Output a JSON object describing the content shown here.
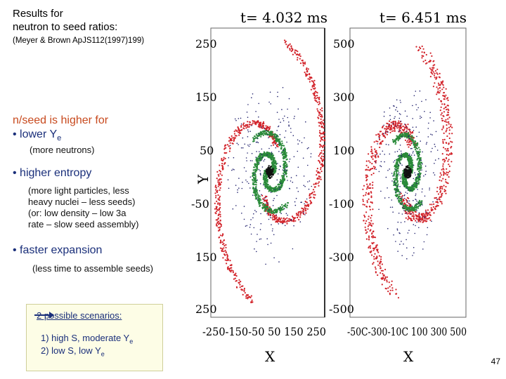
{
  "title_line1": "Results for",
  "title_line2": "neutron to seed ratios:",
  "reference": "(Meyer & Brown ApJS112(1997)199)",
  "heading": "n/seed is higher for",
  "bullet1": "• lower Y",
  "bullet1_sub": "e",
  "bullet1_note": "(more neutrons)",
  "bullet2": "• higher entropy",
  "bullet2_note_l1": "(more light particles, less",
  "bullet2_note_l2": "heavy nuclei – less seeds)",
  "bullet2_note_l3": "(or: low density – low 3a",
  "bullet2_note_l4": "rate – slow seed assembly)",
  "bullet3": "• faster expansion",
  "bullet3_note": "(less time to assemble seeds)",
  "scenarios_title": "2 possible scenarios:",
  "scenario1": "1) high S, moderate Y",
  "scenario1_sub": "e",
  "scenario2": "2) low S, low Y",
  "scenario2_sub": "e",
  "page_number": "47",
  "panels": [
    {
      "time_label": "t= 4.032 ms",
      "y_ticks": [
        "250",
        "150",
        "50",
        "-50",
        "150",
        "250"
      ],
      "x_ticks": "-250-150-50 50 150 250",
      "xlabel": "X",
      "ylabel": "Y"
    },
    {
      "time_label": "t= 6.451 ms",
      "y_ticks": [
        "500",
        "300",
        "100",
        "-100",
        "-300",
        "-500"
      ],
      "x_ticks": "-50C-300-10C 100 300 500",
      "xlabel": "X"
    }
  ],
  "colors": {
    "red": "#d2232a",
    "green": "#2a8a3a",
    "blue": "#23236e",
    "accent_text": "#c84a1e",
    "bullet_text": "#1a2f7a"
  }
}
